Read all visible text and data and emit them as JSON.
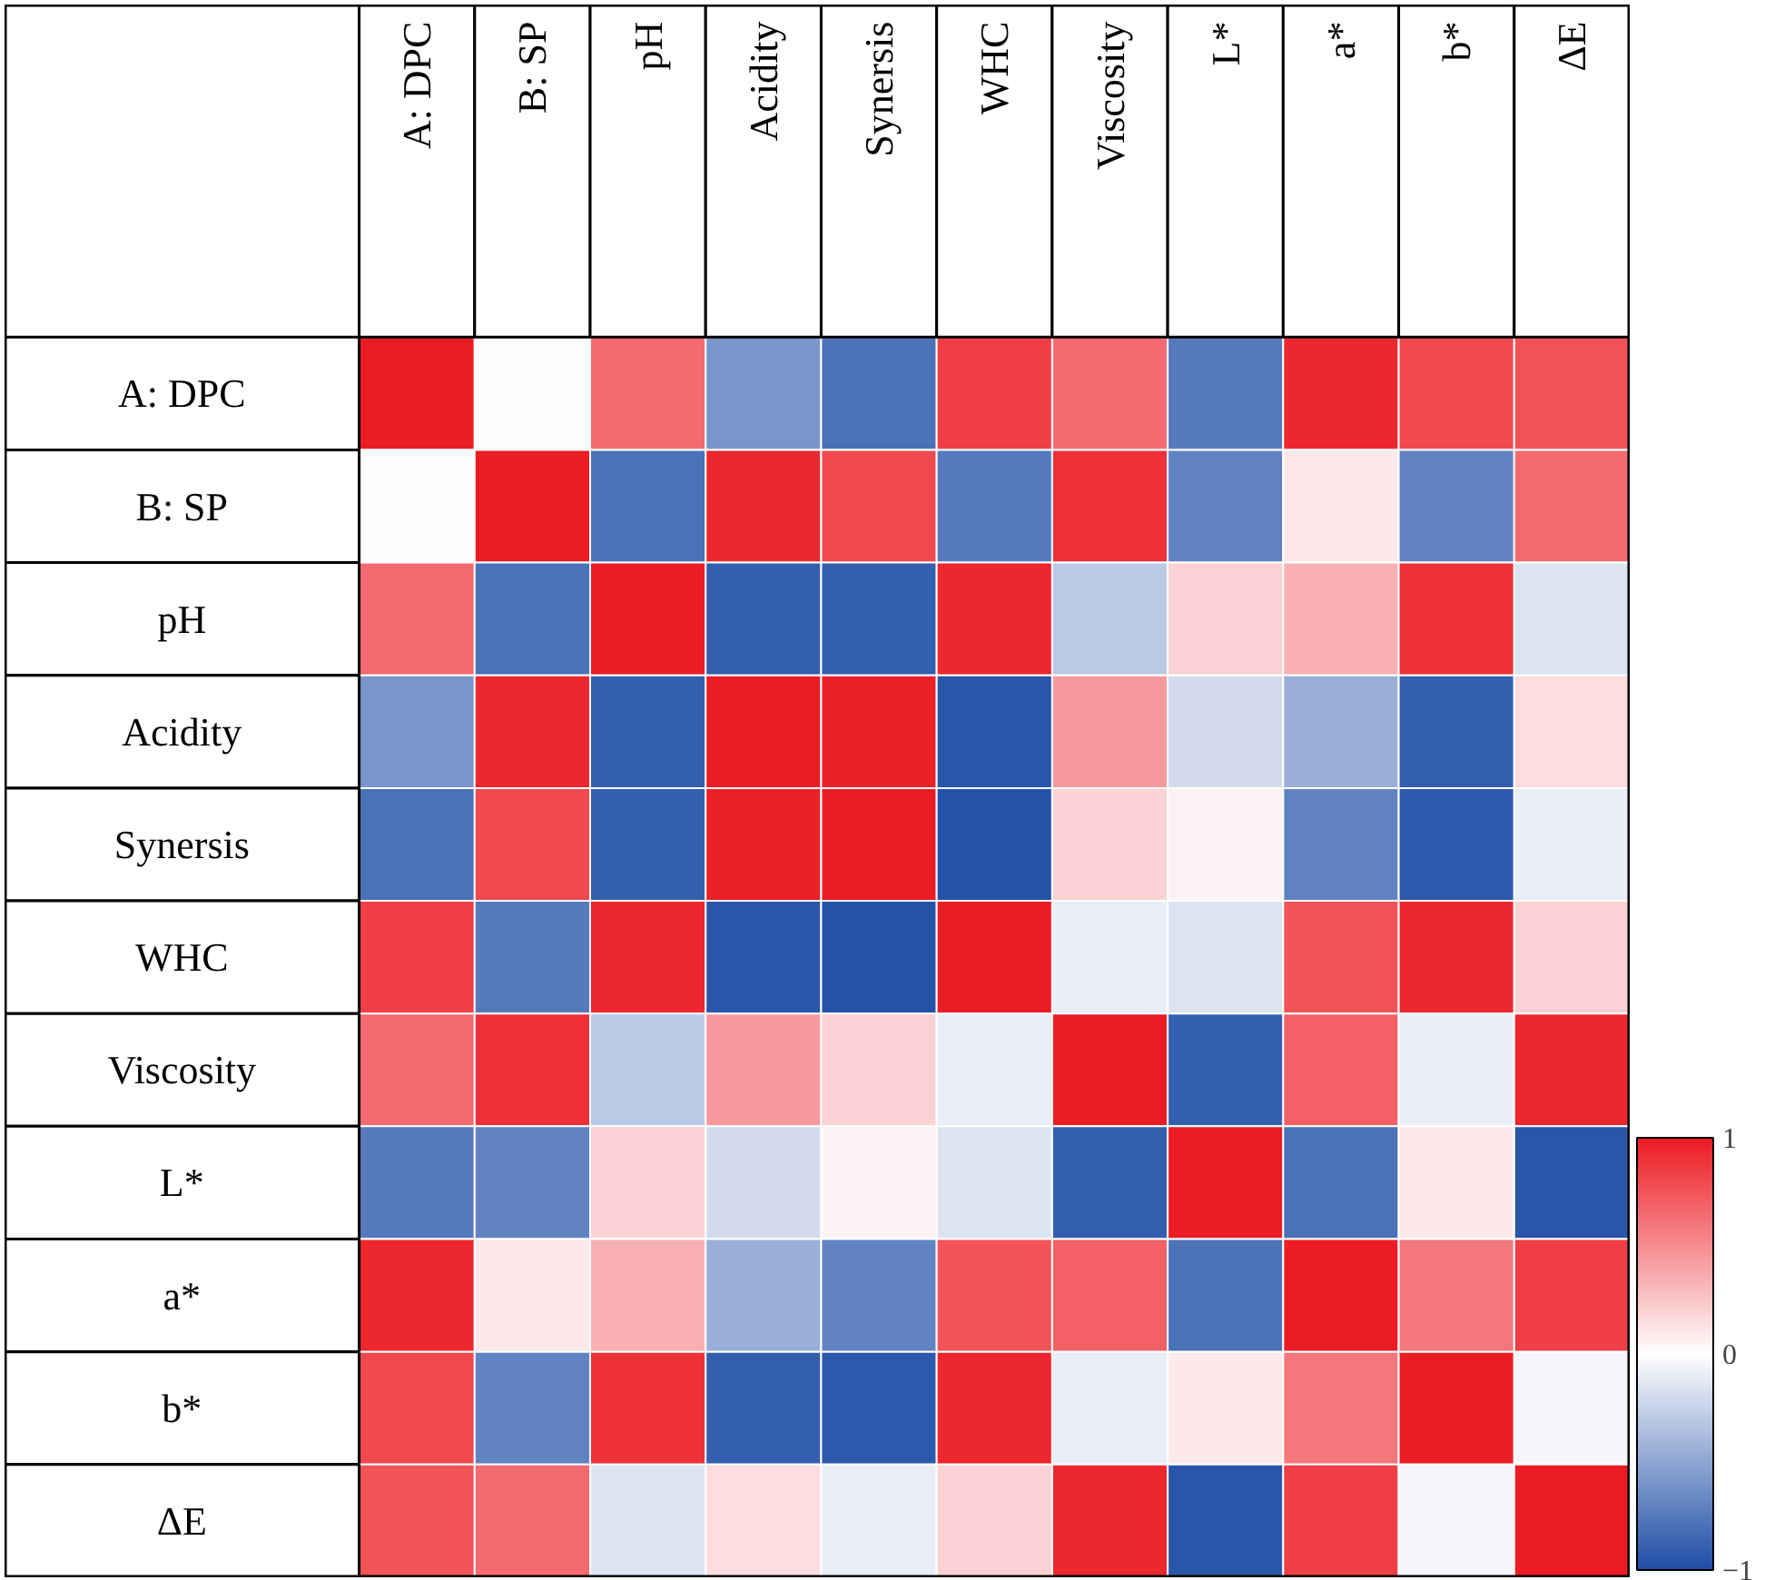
{
  "chart_data": {
    "type": "heatmap",
    "categories": [
      "A: DPC",
      "B: SP",
      "pH",
      "Acidity",
      "Synersis",
      "WHC",
      "Viscosity",
      "L*",
      "a*",
      "b*",
      "ΔE"
    ],
    "y_categories": [
      "A: DPC",
      "B: SP",
      "pH",
      "Acidity",
      "Synersis",
      "WHC",
      "Viscosity",
      "L*",
      "a*",
      "b*",
      "ΔE"
    ],
    "cells": [
      [
        1,
        0,
        0.65,
        -0.6,
        -0.8,
        0.85,
        0.65,
        -0.75,
        0.95,
        0.8,
        0.75
      ],
      [
        0,
        1,
        -0.8,
        0.95,
        0.8,
        -0.75,
        0.9,
        -0.7,
        0.1,
        -0.7,
        0.65
      ],
      [
        0.65,
        -0.8,
        1,
        -0.9,
        -0.9,
        0.95,
        -0.3,
        0.2,
        0.35,
        0.9,
        -0.15
      ],
      [
        -0.6,
        0.95,
        -0.9,
        1,
        0.98,
        -0.95,
        0.45,
        -0.2,
        -0.45,
        -0.9,
        0.15
      ],
      [
        -0.8,
        0.8,
        -0.9,
        0.98,
        1,
        -0.97,
        0.2,
        0.05,
        -0.7,
        -0.93,
        -0.1
      ],
      [
        0.85,
        -0.75,
        0.95,
        -0.95,
        -0.97,
        1,
        -0.1,
        -0.15,
        0.75,
        0.95,
        0.2
      ],
      [
        0.65,
        0.9,
        -0.3,
        0.45,
        0.2,
        -0.1,
        1,
        -0.9,
        0.7,
        -0.1,
        0.95
      ],
      [
        -0.75,
        -0.7,
        0.2,
        -0.2,
        0.05,
        -0.15,
        -0.9,
        1,
        -0.8,
        0.1,
        -0.95
      ],
      [
        0.95,
        0.1,
        0.35,
        -0.45,
        -0.7,
        0.75,
        0.7,
        -0.8,
        1,
        0.6,
        0.85
      ],
      [
        0.8,
        -0.7,
        0.9,
        -0.9,
        -0.93,
        0.95,
        -0.1,
        0.1,
        0.6,
        1,
        -0.05
      ],
      [
        0.75,
        0.65,
        -0.15,
        0.15,
        -0.1,
        0.2,
        0.95,
        -0.95,
        0.85,
        -0.05,
        1
      ]
    ],
    "colors": [
      "#1f4ea6",
      "#ffffff",
      "#ec1c24"
    ],
    "clim": [
      -1,
      1
    ],
    "cticks": [
      {
        "value": -1,
        "label": "−1"
      },
      0,
      1
    ]
  }
}
